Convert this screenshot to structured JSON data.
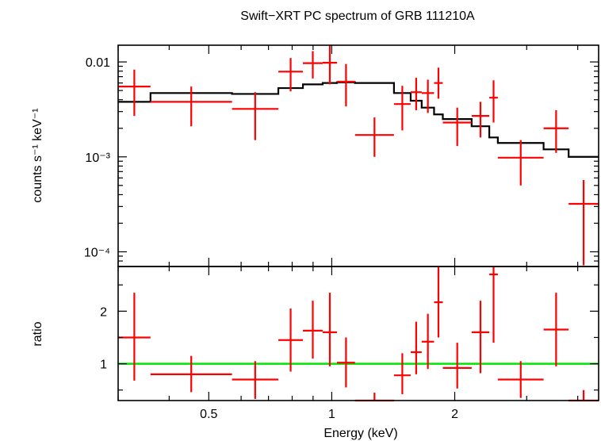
{
  "chart_data": [
    {
      "type": "scatter",
      "panel": "spectrum",
      "title": "Swift−XRT PC spectrum of GRB 111210A",
      "ylabel": "counts s⁻¹ keV⁻¹",
      "yscale": "log",
      "ylim": [
        7e-05,
        0.015
      ],
      "ytick_labels": [
        "0.01",
        "10⁻³",
        "10⁻⁴"
      ],
      "ytick_values": [
        0.01,
        0.001,
        0.0001
      ],
      "data_color": "#ff0000",
      "model_color": "#000000",
      "data": [
        {
          "xlo": 0.3,
          "xhi": 0.36,
          "y": 0.0055,
          "ylo": 0.0027,
          "yhi": 0.0083
        },
        {
          "xlo": 0.36,
          "xhi": 0.57,
          "y": 0.0038,
          "ylo": 0.0021,
          "yhi": 0.0055
        },
        {
          "xlo": 0.57,
          "xhi": 0.74,
          "y": 0.0032,
          "ylo": 0.0015,
          "yhi": 0.0048
        },
        {
          "xlo": 0.74,
          "xhi": 0.85,
          "y": 0.0079,
          "ylo": 0.0049,
          "yhi": 0.011
        },
        {
          "xlo": 0.85,
          "xhi": 0.95,
          "y": 0.0097,
          "ylo": 0.0067,
          "yhi": 0.013
        },
        {
          "xlo": 0.95,
          "xhi": 1.03,
          "y": 0.0098,
          "ylo": 0.0058,
          "yhi": 0.015
        },
        {
          "xlo": 1.03,
          "xhi": 1.14,
          "y": 0.0062,
          "ylo": 0.0034,
          "yhi": 0.0095
        },
        {
          "xlo": 1.14,
          "xhi": 1.42,
          "y": 0.0017,
          "ylo": 0.001,
          "yhi": 0.0026
        },
        {
          "xlo": 1.42,
          "xhi": 1.56,
          "y": 0.0036,
          "ylo": 0.0019,
          "yhi": 0.0056
        },
        {
          "xlo": 1.56,
          "xhi": 1.66,
          "y": 0.0048,
          "ylo": 0.0031,
          "yhi": 0.0068
        },
        {
          "xlo": 1.66,
          "xhi": 1.78,
          "y": 0.0047,
          "ylo": 0.0029,
          "yhi": 0.0065
        },
        {
          "xlo": 1.78,
          "xhi": 1.87,
          "y": 0.006,
          "ylo": 0.0041,
          "yhi": 0.0087
        },
        {
          "xlo": 1.87,
          "xhi": 2.2,
          "y": 0.0023,
          "ylo": 0.0013,
          "yhi": 0.0033
        },
        {
          "xlo": 2.2,
          "xhi": 2.43,
          "y": 0.0027,
          "ylo": 0.0016,
          "yhi": 0.0038
        },
        {
          "xlo": 2.43,
          "xhi": 2.55,
          "y": 0.0042,
          "ylo": 0.0023,
          "yhi": 0.0064
        },
        {
          "xlo": 2.55,
          "xhi": 3.3,
          "y": 0.00098,
          "ylo": 0.0005,
          "yhi": 0.0015
        },
        {
          "xlo": 3.3,
          "xhi": 3.8,
          "y": 0.002,
          "ylo": 0.0011,
          "yhi": 0.0031
        },
        {
          "xlo": 3.8,
          "xhi": 4.5,
          "y": 0.00032,
          "ylo": 7.2e-05,
          "yhi": 0.00057
        }
      ],
      "model": [
        {
          "xlo": 0.3,
          "xhi": 0.36,
          "y": 0.0038
        },
        {
          "xlo": 0.36,
          "xhi": 0.57,
          "y": 0.0047
        },
        {
          "xlo": 0.57,
          "xhi": 0.74,
          "y": 0.0046
        },
        {
          "xlo": 0.74,
          "xhi": 0.85,
          "y": 0.0053
        },
        {
          "xlo": 0.85,
          "xhi": 0.95,
          "y": 0.0058
        },
        {
          "xlo": 0.95,
          "xhi": 1.03,
          "y": 0.006
        },
        {
          "xlo": 1.03,
          "xhi": 1.14,
          "y": 0.0061
        },
        {
          "xlo": 1.14,
          "xhi": 1.42,
          "y": 0.006
        },
        {
          "xlo": 1.42,
          "xhi": 1.56,
          "y": 0.0047
        },
        {
          "xlo": 1.56,
          "xhi": 1.66,
          "y": 0.0039
        },
        {
          "xlo": 1.66,
          "xhi": 1.78,
          "y": 0.0033
        },
        {
          "xlo": 1.78,
          "xhi": 1.87,
          "y": 0.0028
        },
        {
          "xlo": 1.87,
          "xhi": 2.2,
          "y": 0.0025
        },
        {
          "xlo": 2.2,
          "xhi": 2.43,
          "y": 0.0021
        },
        {
          "xlo": 2.43,
          "xhi": 2.55,
          "y": 0.0016
        },
        {
          "xlo": 2.55,
          "xhi": 3.3,
          "y": 0.0014
        },
        {
          "xlo": 3.3,
          "xhi": 3.8,
          "y": 0.0012
        },
        {
          "xlo": 3.8,
          "xhi": 4.5,
          "y": 0.001
        }
      ]
    },
    {
      "type": "scatter",
      "panel": "ratio",
      "ylabel": "ratio",
      "xlabel": "Energy (keV)",
      "xscale": "log",
      "xlim": [
        0.3,
        4.5
      ],
      "xtick_labels": [
        "0.5",
        "1",
        "2"
      ],
      "xtick_values": [
        0.5,
        1,
        2
      ],
      "ylim": [
        0.3,
        2.85
      ],
      "ytick_labels": [
        "1",
        "2"
      ],
      "ytick_values": [
        1,
        2
      ],
      "reference_line": 1,
      "reference_color": "#00e600",
      "data_color": "#ff0000",
      "data": [
        {
          "xlo": 0.3,
          "xhi": 0.36,
          "y": 1.5,
          "ylo": 0.68,
          "yhi": 2.35
        },
        {
          "xlo": 0.36,
          "xhi": 0.57,
          "y": 0.8,
          "ylo": 0.46,
          "yhi": 1.15
        },
        {
          "xlo": 0.57,
          "xhi": 0.74,
          "y": 0.7,
          "ylo": 0.33,
          "yhi": 1.05
        },
        {
          "xlo": 0.74,
          "xhi": 0.85,
          "y": 1.45,
          "ylo": 0.85,
          "yhi": 2.05
        },
        {
          "xlo": 0.85,
          "xhi": 0.95,
          "y": 1.63,
          "ylo": 1.1,
          "yhi": 2.2
        },
        {
          "xlo": 0.95,
          "xhi": 1.03,
          "y": 1.6,
          "ylo": 0.95,
          "yhi": 2.35
        },
        {
          "xlo": 1.03,
          "xhi": 1.14,
          "y": 1.02,
          "ylo": 0.55,
          "yhi": 1.5
        },
        {
          "xlo": 1.14,
          "xhi": 1.42,
          "y": 0.3,
          "ylo": 0.3,
          "yhi": 0.45
        },
        {
          "xlo": 1.42,
          "xhi": 1.56,
          "y": 0.78,
          "ylo": 0.42,
          "yhi": 1.2
        },
        {
          "xlo": 1.56,
          "xhi": 1.66,
          "y": 1.22,
          "ylo": 0.8,
          "yhi": 1.8
        },
        {
          "xlo": 1.66,
          "xhi": 1.78,
          "y": 1.42,
          "ylo": 0.9,
          "yhi": 1.95
        },
        {
          "xlo": 1.78,
          "xhi": 1.87,
          "y": 2.17,
          "ylo": 1.5,
          "yhi": 2.85
        },
        {
          "xlo": 1.87,
          "xhi": 2.2,
          "y": 0.92,
          "ylo": 0.53,
          "yhi": 1.4
        },
        {
          "xlo": 2.2,
          "xhi": 2.43,
          "y": 1.6,
          "ylo": 0.82,
          "yhi": 2.2
        },
        {
          "xlo": 2.43,
          "xhi": 2.55,
          "y": 2.7,
          "ylo": 1.4,
          "yhi": 2.85
        },
        {
          "xlo": 2.55,
          "xhi": 3.3,
          "y": 0.7,
          "ylo": 0.35,
          "yhi": 1.05
        },
        {
          "xlo": 3.3,
          "xhi": 3.8,
          "y": 1.65,
          "ylo": 0.95,
          "yhi": 2.35
        },
        {
          "xlo": 3.8,
          "xhi": 4.5,
          "y": 0.3,
          "ylo": 0.3,
          "yhi": 0.5
        }
      ]
    }
  ]
}
